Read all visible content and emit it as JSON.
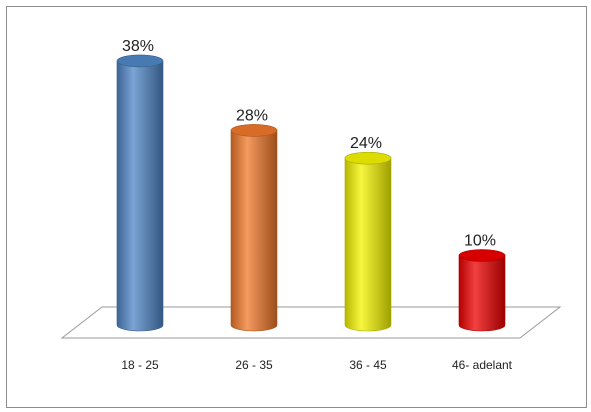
{
  "chart_data": {
    "type": "bar",
    "title": "",
    "xlabel": "",
    "ylabel": "",
    "categories": [
      "18 - 25",
      "26 - 35",
      "36 - 45",
      "46- adelant"
    ],
    "values": [
      38,
      28,
      24,
      10
    ],
    "data_labels": [
      "38%",
      "28%",
      "24%",
      "10%"
    ],
    "unit": "%",
    "ylim": [
      0,
      40
    ],
    "grid": false,
    "legend": "none",
    "style": "3d-cylinder",
    "colors": [
      "#4f86c6",
      "#f0782a",
      "#f4f400",
      "#ee0000"
    ]
  }
}
